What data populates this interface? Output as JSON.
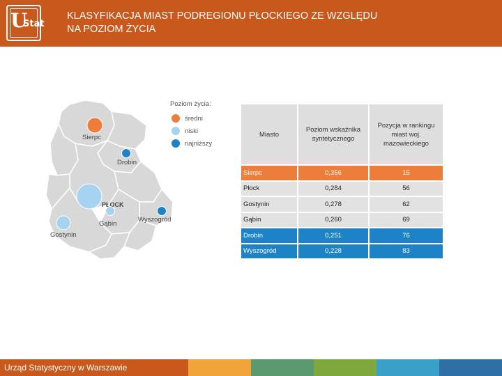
{
  "header": {
    "logo_main": "U",
    "logo_sub": "Stat",
    "title_line1": "KLASYFIKACJA MIAST PODREGIONU PŁOCKIEGO ZE WZGLĘDU",
    "title_line2": "NA POZIOM ŻYCIA"
  },
  "colors": {
    "header": "#c8581b",
    "medium": "#ed7d3a",
    "low": "#a7d3f2",
    "lowest": "#1e83c6"
  },
  "map": {
    "labels": {
      "sierpc": "Sierpc",
      "drobin": "Drobin",
      "plock": "PŁOCK",
      "gabin": "Gąbin",
      "wyszogrod": "Wyszogród",
      "gostynin": "Gostynin"
    }
  },
  "legend": {
    "title": "Poziom życia:",
    "items": [
      {
        "label": "średni",
        "color": "#ed7d3a"
      },
      {
        "label": "niski",
        "color": "#a7d3f2"
      },
      {
        "label": "najniższy",
        "color": "#1e83c6"
      }
    ]
  },
  "table": {
    "headers": {
      "city": "Miasto",
      "index": "Poziom wskaźnika syntetycznego",
      "rank": "Pozycja w rankingu miast woj. mazowieckiego"
    },
    "rows": [
      {
        "city": "Sierpc",
        "index": "0,356",
        "rank": "15"
      },
      {
        "city": "Płock",
        "index": "0,284",
        "rank": "56"
      },
      {
        "city": "Gostynin",
        "index": "0,278",
        "rank": "62"
      },
      {
        "city": "Gąbin",
        "index": "0,260",
        "rank": "69"
      },
      {
        "city": "Drobin",
        "index": "0,251",
        "rank": "76"
      },
      {
        "city": "Wyszogród",
        "index": "0,228",
        "rank": "83"
      }
    ]
  },
  "footer": {
    "text": "Urząd Statystyczny w Warszawie"
  }
}
